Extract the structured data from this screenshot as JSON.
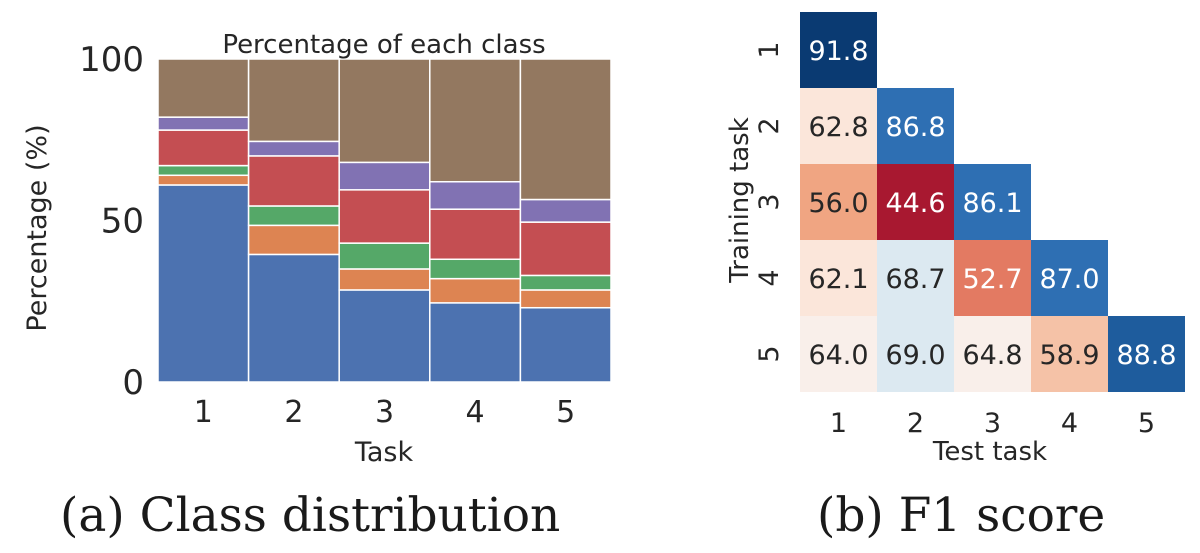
{
  "captions": {
    "a": "(a) Class distribution",
    "b": "(b) F1 score"
  },
  "chart_data": [
    {
      "type": "bar",
      "stacked": true,
      "title": "Percentage of each class",
      "xlabel": "Task",
      "ylabel": "Percentage (%)",
      "ylim": [
        0,
        100
      ],
      "yticks": [
        0,
        50,
        100
      ],
      "categories": [
        "1",
        "2",
        "3",
        "4",
        "5"
      ],
      "grid": true,
      "series": [
        {
          "color": "#4c72b0",
          "values": [
            61,
            39.5,
            28.5,
            24.5,
            23
          ]
        },
        {
          "color": "#dd8452",
          "values": [
            3,
            9,
            6.5,
            7.5,
            5.5
          ]
        },
        {
          "color": "#55a868",
          "values": [
            3,
            6,
            8,
            6,
            4.5
          ]
        },
        {
          "color": "#c44e52",
          "values": [
            11,
            15.5,
            16.5,
            15.5,
            16.5
          ]
        },
        {
          "color": "#8172b3",
          "values": [
            4,
            4.5,
            8.5,
            8.5,
            7
          ]
        },
        {
          "color": "#937860",
          "values": [
            18,
            25.5,
            32,
            38,
            43.5
          ]
        }
      ]
    },
    {
      "type": "heatmap",
      "xlabel": "Test task",
      "ylabel": "Training task",
      "x": [
        "1",
        "2",
        "3",
        "4",
        "5"
      ],
      "y": [
        "1",
        "2",
        "3",
        "4",
        "5"
      ],
      "values": [
        [
          91.8,
          null,
          null,
          null,
          null
        ],
        [
          62.8,
          86.8,
          null,
          null,
          null
        ],
        [
          56.0,
          44.6,
          86.1,
          null,
          null
        ],
        [
          62.1,
          68.7,
          52.7,
          87.0,
          null
        ],
        [
          64.0,
          69.0,
          64.8,
          58.9,
          88.8
        ]
      ],
      "labels": [
        [
          "91.8",
          "",
          "",
          "",
          ""
        ],
        [
          "62.8",
          "86.8",
          "",
          "",
          ""
        ],
        [
          "56.0",
          "44.6",
          "86.1",
          "",
          ""
        ],
        [
          "62.1",
          "68.7",
          "52.7",
          "87.0",
          ""
        ],
        [
          "64.0",
          "69.0",
          "64.8",
          "58.9",
          "88.8"
        ]
      ],
      "colors": [
        [
          "#0a3a72",
          "",
          "",
          "",
          ""
        ],
        [
          "#fbe6da",
          "#2e6fb3",
          "",
          "",
          ""
        ],
        [
          "#f0a582",
          "#a81830",
          "#2e6fb3",
          "",
          ""
        ],
        [
          "#fbe6da",
          "#dce9f1",
          "#e37a62",
          "#2e6fb3",
          ""
        ],
        [
          "#f9efea",
          "#dce9f1",
          "#f9efea",
          "#f5c2a7",
          "#1e5c9d"
        ]
      ],
      "text_colors": [
        [
          "#ffffff",
          "",
          "",
          "",
          ""
        ],
        [
          "#262626",
          "#ffffff",
          "",
          "",
          ""
        ],
        [
          "#262626",
          "#ffffff",
          "#ffffff",
          "",
          ""
        ],
        [
          "#262626",
          "#262626",
          "#ffffff",
          "#ffffff",
          ""
        ],
        [
          "#262626",
          "#262626",
          "#262626",
          "#262626",
          "#ffffff"
        ]
      ]
    }
  ]
}
